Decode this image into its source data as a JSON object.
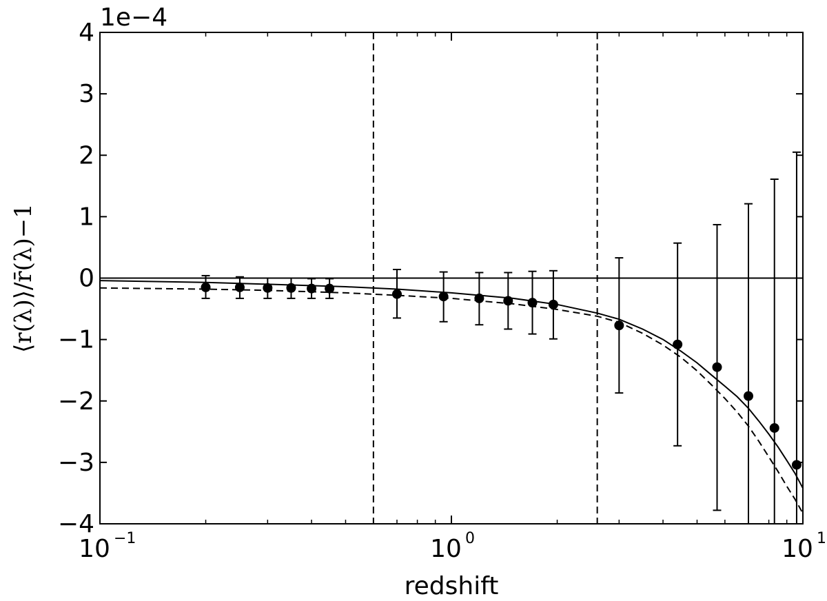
{
  "chart_data": {
    "type": "scatter",
    "xlabel": "redshift",
    "ylabel": "⟨r(λ)⟩/r̄(λ)−1",
    "offset_text": "1e−4",
    "x_scale": "log",
    "xlim": [
      0.1,
      10
    ],
    "ylim": [
      -4,
      4
    ],
    "y_multiplier": 0.0001,
    "x_ticks": [
      {
        "value": 0.1,
        "base": "10",
        "exp": "−1"
      },
      {
        "value": 1,
        "base": "10",
        "exp": "0"
      },
      {
        "value": 10,
        "base": "10",
        "exp": "1"
      }
    ],
    "y_ticks": [
      {
        "value": -4,
        "label": "−4"
      },
      {
        "value": -3,
        "label": "−3"
      },
      {
        "value": -2,
        "label": "−2"
      },
      {
        "value": -1,
        "label": "−1"
      },
      {
        "value": 0,
        "label": "0"
      },
      {
        "value": 1,
        "label": "1"
      },
      {
        "value": 2,
        "label": "2"
      },
      {
        "value": 3,
        "label": "3"
      },
      {
        "value": 4,
        "label": "4"
      }
    ],
    "vertical_lines": [
      {
        "x": 0.6,
        "style": "dashed"
      },
      {
        "x": 2.6,
        "style": "dashed"
      }
    ],
    "horizontal_line": {
      "y": 0,
      "style": "solid"
    },
    "grid": false,
    "series": [
      {
        "style": "points-with-errorbars",
        "color": "#000000",
        "points": [
          {
            "x": 0.2,
            "y": -0.15,
            "lo": -0.33,
            "hi": 0.04
          },
          {
            "x": 0.25,
            "y": -0.15,
            "lo": -0.33,
            "hi": 0.02
          },
          {
            "x": 0.3,
            "y": -0.16,
            "lo": -0.33,
            "hi": 0.0
          },
          {
            "x": 0.35,
            "y": -0.16,
            "lo": -0.33,
            "hi": 0.0
          },
          {
            "x": 0.4,
            "y": -0.17,
            "lo": -0.33,
            "hi": -0.01
          },
          {
            "x": 0.45,
            "y": -0.17,
            "lo": -0.33,
            "hi": -0.01
          },
          {
            "x": 0.7,
            "y": -0.26,
            "lo": -0.65,
            "hi": 0.14
          },
          {
            "x": 0.95,
            "y": -0.3,
            "lo": -0.71,
            "hi": 0.1
          },
          {
            "x": 1.2,
            "y": -0.33,
            "lo": -0.76,
            "hi": 0.09
          },
          {
            "x": 1.45,
            "y": -0.37,
            "lo": -0.83,
            "hi": 0.09
          },
          {
            "x": 1.7,
            "y": -0.4,
            "lo": -0.91,
            "hi": 0.11
          },
          {
            "x": 1.95,
            "y": -0.43,
            "lo": -0.99,
            "hi": 0.12
          },
          {
            "x": 3.0,
            "y": -0.77,
            "lo": -1.87,
            "hi": 0.33
          },
          {
            "x": 4.4,
            "y": -1.08,
            "lo": -2.73,
            "hi": 0.57
          },
          {
            "x": 5.7,
            "y": -1.45,
            "lo": -3.78,
            "hi": 0.87
          },
          {
            "x": 7.0,
            "y": -1.92,
            "lo": -4.0,
            "hi": 1.21
          },
          {
            "x": 8.3,
            "y": -2.44,
            "lo": -4.0,
            "hi": 1.61
          },
          {
            "x": 9.6,
            "y": -3.04,
            "lo": -4.0,
            "hi": 2.05
          }
        ]
      },
      {
        "style": "solid-line",
        "color": "#000000",
        "x": [
          0.1,
          0.2,
          0.3,
          0.5,
          0.7,
          1.0,
          1.5,
          2.0,
          2.6,
          3.0,
          3.5,
          4.0,
          4.5,
          5.0,
          5.5,
          6.0,
          6.5,
          7.0,
          7.5,
          8.0,
          8.5,
          9.0,
          9.5,
          10.0
        ],
        "y": [
          -0.04,
          -0.07,
          -0.1,
          -0.14,
          -0.18,
          -0.24,
          -0.33,
          -0.43,
          -0.57,
          -0.67,
          -0.83,
          -1.0,
          -1.19,
          -1.38,
          -1.58,
          -1.76,
          -1.93,
          -2.12,
          -2.33,
          -2.54,
          -2.75,
          -2.97,
          -3.18,
          -3.42
        ]
      },
      {
        "style": "dashed-line",
        "color": "#000000",
        "x": [
          0.1,
          0.2,
          0.3,
          0.5,
          0.7,
          1.0,
          1.5,
          2.0,
          2.6,
          3.0,
          3.5,
          4.0,
          4.5,
          5.0,
          5.5,
          6.0,
          6.5,
          7.0,
          7.5,
          8.0,
          8.5,
          9.0,
          9.5,
          10.0
        ],
        "y": [
          -0.16,
          -0.18,
          -0.2,
          -0.24,
          -0.28,
          -0.33,
          -0.42,
          -0.51,
          -0.62,
          -0.72,
          -0.9,
          -1.09,
          -1.29,
          -1.51,
          -1.74,
          -1.96,
          -2.18,
          -2.41,
          -2.66,
          -2.91,
          -3.15,
          -3.39,
          -3.6,
          -3.83
        ]
      }
    ]
  }
}
